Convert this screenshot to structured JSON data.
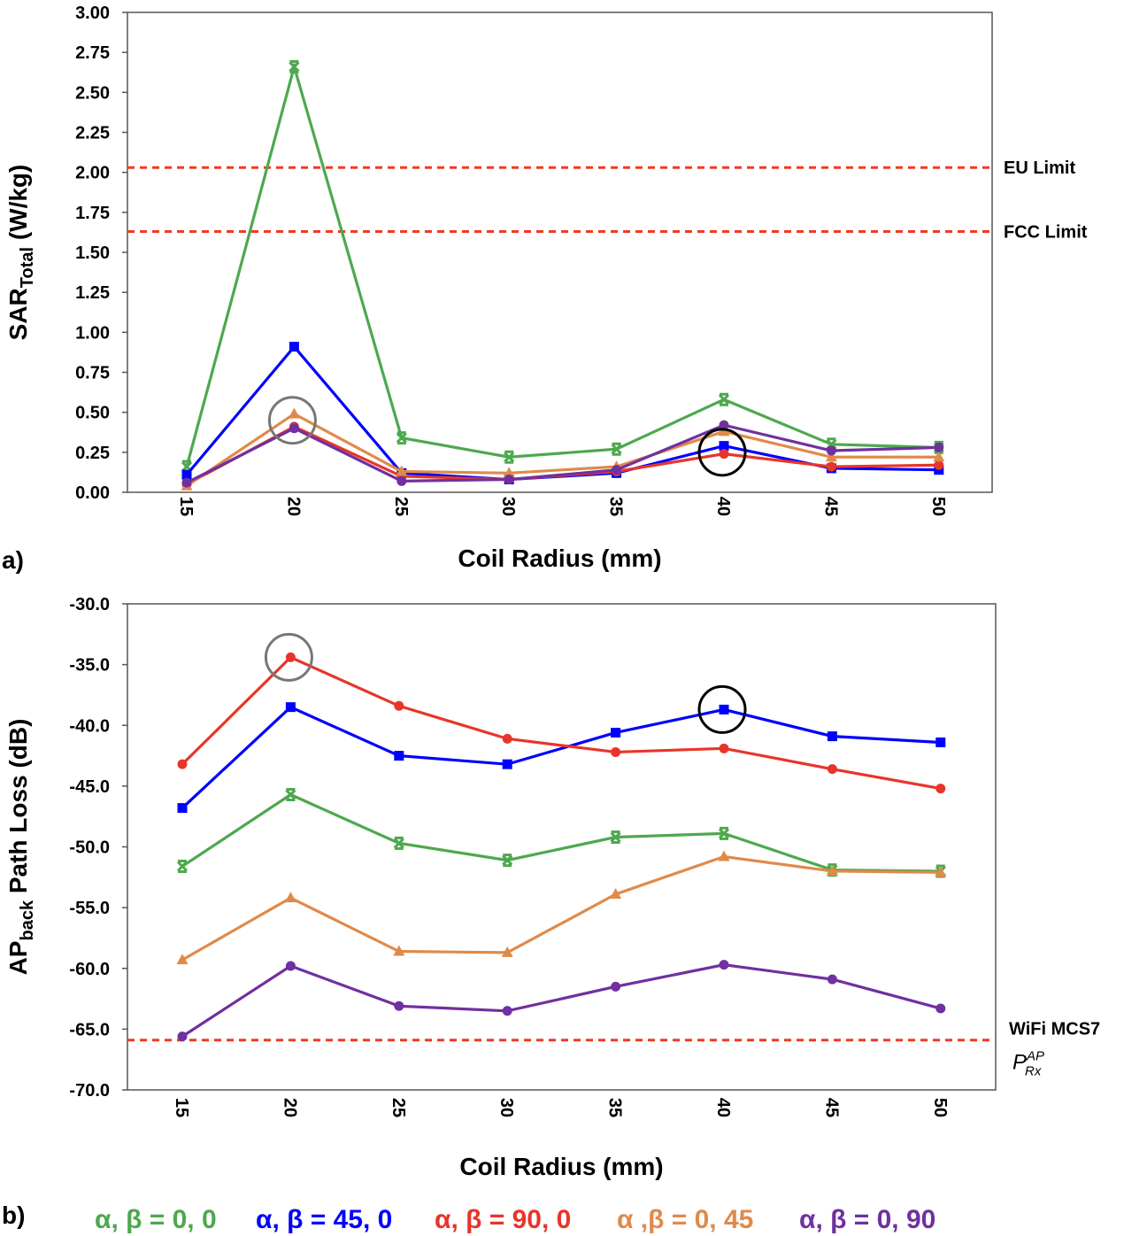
{
  "chart_data": [
    {
      "type": "line",
      "panel_label": "a)",
      "xlabel": "Coil Radius (mm)",
      "ylabel_main": "SAR",
      "ylabel_sub": "Total",
      "ylabel_unit": " (W/kg)",
      "categories": [
        "15",
        "20",
        "25",
        "30",
        "35",
        "40",
        "45",
        "50"
      ],
      "ylim": [
        0,
        3
      ],
      "yticks": [
        "0.00",
        "0.25",
        "0.50",
        "0.75",
        "1.00",
        "1.25",
        "1.50",
        "1.75",
        "2.00",
        "2.25",
        "2.50",
        "2.75",
        "3.00"
      ],
      "grid": false,
      "series": [
        {
          "name": "α, β = 0, 0",
          "color": "#4ea84e",
          "marker": "x",
          "values": [
            0.16,
            2.66,
            0.34,
            0.22,
            0.27,
            0.58,
            0.3,
            0.28
          ]
        },
        {
          "name": "α, β = 45, 0",
          "color": "#0000ff",
          "marker": "square",
          "values": [
            0.11,
            0.91,
            0.12,
            0.08,
            0.12,
            0.29,
            0.15,
            0.14
          ]
        },
        {
          "name": "α, β = 90, 0",
          "color": "#e8352a",
          "marker": "circle",
          "values": [
            0.05,
            0.41,
            0.1,
            0.08,
            0.13,
            0.24,
            0.16,
            0.17
          ]
        },
        {
          "name": "α ,β = 0, 45",
          "color": "#e08a4a",
          "marker": "triangle",
          "values": [
            0.04,
            0.49,
            0.13,
            0.12,
            0.16,
            0.38,
            0.22,
            0.22
          ]
        },
        {
          "name": "α, β = 0, 90",
          "color": "#7030a0",
          "marker": "circle",
          "values": [
            0.06,
            0.4,
            0.07,
            0.08,
            0.14,
            0.42,
            0.26,
            0.28
          ]
        }
      ],
      "reference_lines": [
        {
          "label": "EU Limit",
          "value": 2.03,
          "color": "#f03a24"
        },
        {
          "label": "FCC Limit",
          "value": 1.63,
          "color": "#f03a24"
        }
      ],
      "highlights": [
        {
          "category": "20",
          "value": 0.45,
          "color": "#777777"
        },
        {
          "category": "40",
          "value": 0.25,
          "color": "#000000"
        }
      ]
    },
    {
      "type": "line",
      "panel_label": "b)",
      "xlabel": "Coil Radius (mm)",
      "ylabel_main": "AP",
      "ylabel_sub": "back",
      "ylabel_unit": " Path Loss (dB)",
      "categories": [
        "15",
        "20",
        "25",
        "30",
        "35",
        "40",
        "45",
        "50"
      ],
      "ylim": [
        -70,
        -30
      ],
      "yticks": [
        "-70.0",
        "-65.0",
        "-60.0",
        "-55.0",
        "-50.0",
        "-45.0",
        "-40.0",
        "-35.0",
        "-30.0"
      ],
      "grid": false,
      "series": [
        {
          "name": "α, β = 0, 0",
          "color": "#4ea84e",
          "marker": "x",
          "values": [
            -51.6,
            -45.7,
            -49.7,
            -51.1,
            -49.2,
            -48.9,
            -51.9,
            -52.0
          ]
        },
        {
          "name": "α, β = 45, 0",
          "color": "#0000ff",
          "marker": "square",
          "values": [
            -46.8,
            -38.5,
            -42.5,
            -43.2,
            -40.6,
            -38.7,
            -40.9,
            -41.4
          ]
        },
        {
          "name": "α, β = 90, 0",
          "color": "#e8352a",
          "marker": "circle",
          "values": [
            -43.2,
            -34.4,
            -38.4,
            -41.1,
            -42.2,
            -41.9,
            -43.6,
            -45.2
          ]
        },
        {
          "name": "α ,β = 0, 45",
          "color": "#e08a4a",
          "marker": "triangle",
          "values": [
            -59.3,
            -54.2,
            -58.6,
            -58.7,
            -53.9,
            -50.8,
            -52.0,
            -52.1
          ]
        },
        {
          "name": "α, β = 0, 90",
          "color": "#7030a0",
          "marker": "circle",
          "values": [
            -65.6,
            -59.8,
            -63.1,
            -63.5,
            -61.5,
            -59.7,
            -60.9,
            -63.3
          ]
        }
      ],
      "reference_lines": [
        {
          "label": "WiFi MCS7",
          "label_math": "P",
          "label_sup": "AP",
          "label_sub": "Rx",
          "value": -65.9,
          "color": "#f03a24"
        }
      ],
      "highlights": [
        {
          "category": "20",
          "value": -34.4,
          "color": "#777777"
        },
        {
          "category": "40",
          "value": -38.7,
          "color": "#000000"
        }
      ]
    }
  ],
  "legend": [
    {
      "label": "α, β = 0, 0",
      "color": "#4ea84e"
    },
    {
      "label": "α, β = 45, 0",
      "color": "#0000ff"
    },
    {
      "label": "α, β = 90, 0",
      "color": "#e8352a"
    },
    {
      "label": "α ,β = 0, 45",
      "color": "#e08a4a"
    },
    {
      "label": "α, β = 0, 90",
      "color": "#7030a0"
    }
  ]
}
